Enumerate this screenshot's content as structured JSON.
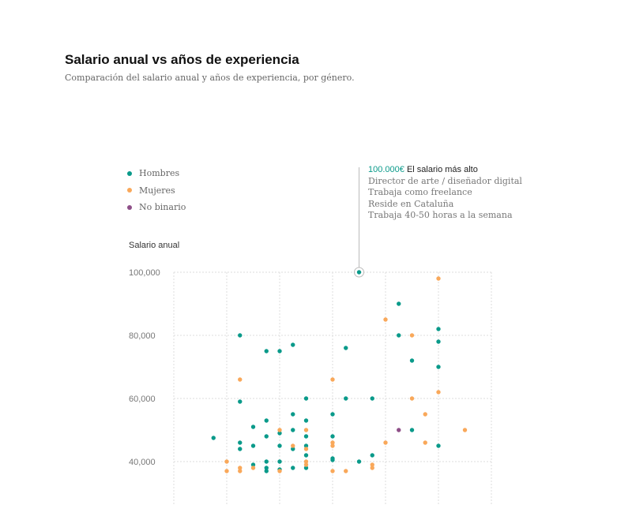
{
  "title": "Salario anual vs años de experiencia",
  "subtitle": "Comparación del salario anual y años de experiencia, por género.",
  "legend": [
    {
      "label": "Hombres",
      "color": "#0a9a8a"
    },
    {
      "label": "Mujeres",
      "color": "#f9a85a"
    },
    {
      "label": "No binario",
      "color": "#8e4f88"
    }
  ],
  "annotation": {
    "value": "100.000€",
    "headline": "El salario más alto",
    "lines": [
      "Director de arte / diseñador digital",
      "Trabaja como freelance",
      "Reside en Cataluña",
      "Trabaja 40-50 horas a la semana"
    ]
  },
  "chart_data": {
    "type": "scatter",
    "title": "Salario anual vs años de experiencia",
    "ylabel": "Salario anual",
    "xlabel": "",
    "yticks": [
      "40,000",
      "60,000",
      "80,000",
      "100,000"
    ],
    "ytick_values": [
      40000,
      60000,
      80000,
      100000
    ],
    "grid": true,
    "legend_position": "top-left",
    "series": [
      {
        "name": "Hombres",
        "color": "#0a9a8a",
        "points": [
          [
            14,
            100000
          ],
          [
            17,
            90000
          ],
          [
            17,
            80000
          ],
          [
            20,
            82000
          ],
          [
            20,
            78000
          ],
          [
            20,
            70000
          ],
          [
            20,
            45000
          ],
          [
            18,
            72000
          ],
          [
            18,
            50000
          ],
          [
            5,
            80000
          ],
          [
            5,
            59000
          ],
          [
            5,
            46000
          ],
          [
            5,
            44000
          ],
          [
            7,
            75000
          ],
          [
            7,
            53000
          ],
          [
            7,
            48000
          ],
          [
            7,
            40000
          ],
          [
            7,
            38000
          ],
          [
            7,
            37000
          ],
          [
            8,
            75000
          ],
          [
            8,
            49000
          ],
          [
            8,
            45000
          ],
          [
            8,
            40000
          ],
          [
            8,
            37500
          ],
          [
            9,
            77000
          ],
          [
            9,
            55000
          ],
          [
            9,
            50000
          ],
          [
            9,
            44000
          ],
          [
            9,
            38000
          ],
          [
            13,
            76000
          ],
          [
            13,
            60000
          ],
          [
            10,
            60000
          ],
          [
            10,
            53000
          ],
          [
            10,
            48000
          ],
          [
            10,
            45000
          ],
          [
            10,
            42000
          ],
          [
            10,
            38000
          ],
          [
            12,
            55000
          ],
          [
            12,
            48000
          ],
          [
            12,
            41000
          ],
          [
            12,
            40500
          ],
          [
            15,
            60000
          ],
          [
            15,
            42000
          ],
          [
            14,
            40000
          ],
          [
            6,
            51000
          ],
          [
            6,
            45000
          ],
          [
            6,
            39000
          ],
          [
            3,
            47500
          ]
        ]
      },
      {
        "name": "Mujeres",
        "color": "#f9a85a",
        "points": [
          [
            20,
            98000
          ],
          [
            20,
            62000
          ],
          [
            16,
            85000
          ],
          [
            16,
            46000
          ],
          [
            18,
            80000
          ],
          [
            18,
            60000
          ],
          [
            19,
            55000
          ],
          [
            19,
            46000
          ],
          [
            22,
            50000
          ],
          [
            5,
            66000
          ],
          [
            5,
            38000
          ],
          [
            5,
            37000
          ],
          [
            12,
            66000
          ],
          [
            12,
            46000
          ],
          [
            12,
            45000
          ],
          [
            12,
            37000
          ],
          [
            8,
            50000
          ],
          [
            8,
            37000
          ],
          [
            10,
            50000
          ],
          [
            10,
            44000
          ],
          [
            10,
            40000
          ],
          [
            10,
            39000
          ],
          [
            9,
            45000
          ],
          [
            4,
            40000
          ],
          [
            4,
            37000
          ],
          [
            6,
            38000
          ],
          [
            13,
            37000
          ],
          [
            15,
            39000
          ],
          [
            15,
            38000
          ]
        ]
      },
      {
        "name": "No binario",
        "color": "#8e4f88",
        "points": [
          [
            17,
            50000
          ]
        ]
      }
    ]
  }
}
